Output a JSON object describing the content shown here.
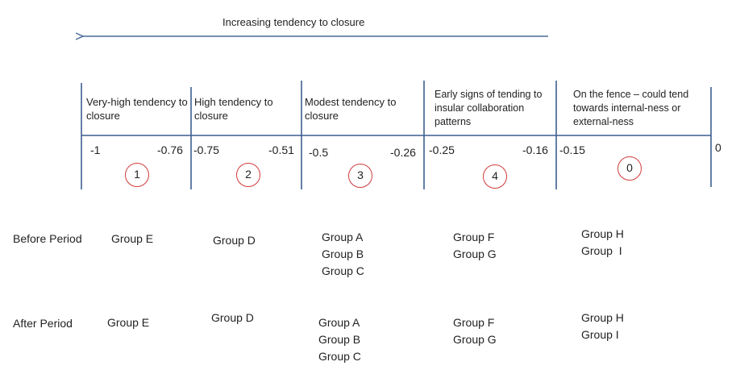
{
  "arrow": {
    "label": "Increasing tendency to closure"
  },
  "scale": {
    "end_zero": "0",
    "colors": {
      "arrow": "#4a6a96",
      "axis": "#3d5f90",
      "circle": "#d23b3b"
    },
    "categories": [
      {
        "label": "Very-high tendency to closure",
        "min": "-1",
        "max": "-0.76",
        "rank": "1"
      },
      {
        "label": "High tendency to closure",
        "min": "-0.75",
        "max": "-0.51",
        "rank": "2"
      },
      {
        "label": "Modest tendency to closure",
        "min": "-0.5",
        "max": "-0.26",
        "rank": "3"
      },
      {
        "label": "Early signs of tending to insular collaboration patterns",
        "min": "-0.25",
        "max": "-0.16",
        "rank": "4"
      },
      {
        "label": "On the fence – could tend towards internal-ness or external-ness",
        "min": "-0.15",
        "max": "",
        "rank": "0"
      }
    ]
  },
  "periods": [
    {
      "label": "Before Period",
      "groups": [
        [
          "Group E"
        ],
        [
          "Group D"
        ],
        [
          "Group A",
          "Group B",
          "Group C"
        ],
        [
          "Group F",
          "Group G"
        ],
        [
          "Group H",
          "Group  I"
        ]
      ]
    },
    {
      "label": "After Period",
      "groups": [
        [
          "Group E"
        ],
        [
          "Group D"
        ],
        [
          "Group A",
          "Group B",
          "Group C"
        ],
        [
          "Group F",
          "Group G"
        ],
        [
          "Group H",
          "Group I"
        ]
      ]
    }
  ]
}
